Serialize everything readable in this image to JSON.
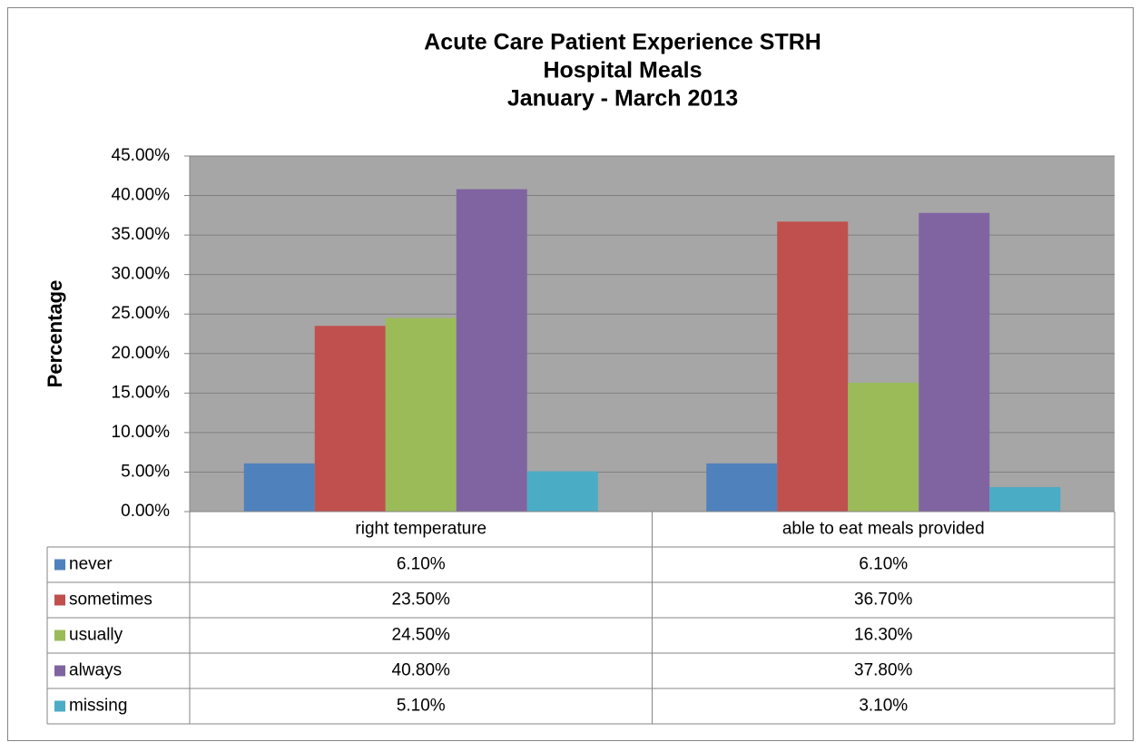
{
  "chart_data": {
    "type": "bar",
    "title": [
      "Acute Care Patient Experience STRH",
      "Hospital Meals",
      "January - March 2013"
    ],
    "y_axis_label": "Percentage",
    "categories": [
      "right temperature",
      "able to eat meals provided"
    ],
    "series": [
      {
        "name": "never",
        "color": "#4f81bd",
        "values": [
          6.1,
          6.1
        ],
        "value_labels": [
          "6.10%",
          "6.10%"
        ]
      },
      {
        "name": "sometimes",
        "color": "#c0504d",
        "values": [
          23.5,
          36.7
        ],
        "value_labels": [
          "23.50%",
          "36.70%"
        ]
      },
      {
        "name": "usually",
        "color": "#9bbb59",
        "values": [
          24.5,
          16.3
        ],
        "value_labels": [
          "24.50%",
          "16.30%"
        ]
      },
      {
        "name": "always",
        "color": "#8064a2",
        "values": [
          40.8,
          37.8
        ],
        "value_labels": [
          "40.80%",
          "37.80%"
        ]
      },
      {
        "name": "missing",
        "color": "#4bacc6",
        "values": [
          5.1,
          3.1
        ],
        "value_labels": [
          "5.10%",
          "3.10%"
        ]
      }
    ],
    "ylim": [
      0,
      45
    ],
    "yticks": [
      {
        "value": 0,
        "label": "0.00%"
      },
      {
        "value": 5,
        "label": "5.00%"
      },
      {
        "value": 10,
        "label": "10.00%"
      },
      {
        "value": 15,
        "label": "15.00%"
      },
      {
        "value": 20,
        "label": "20.00%"
      },
      {
        "value": 25,
        "label": "25.00%"
      },
      {
        "value": 30,
        "label": "30.00%"
      },
      {
        "value": 35,
        "label": "35.00%"
      },
      {
        "value": 40,
        "label": "40.00%"
      },
      {
        "value": 45,
        "label": "45.00%"
      }
    ],
    "grid": true,
    "plot_background": "#a6a6a6"
  }
}
